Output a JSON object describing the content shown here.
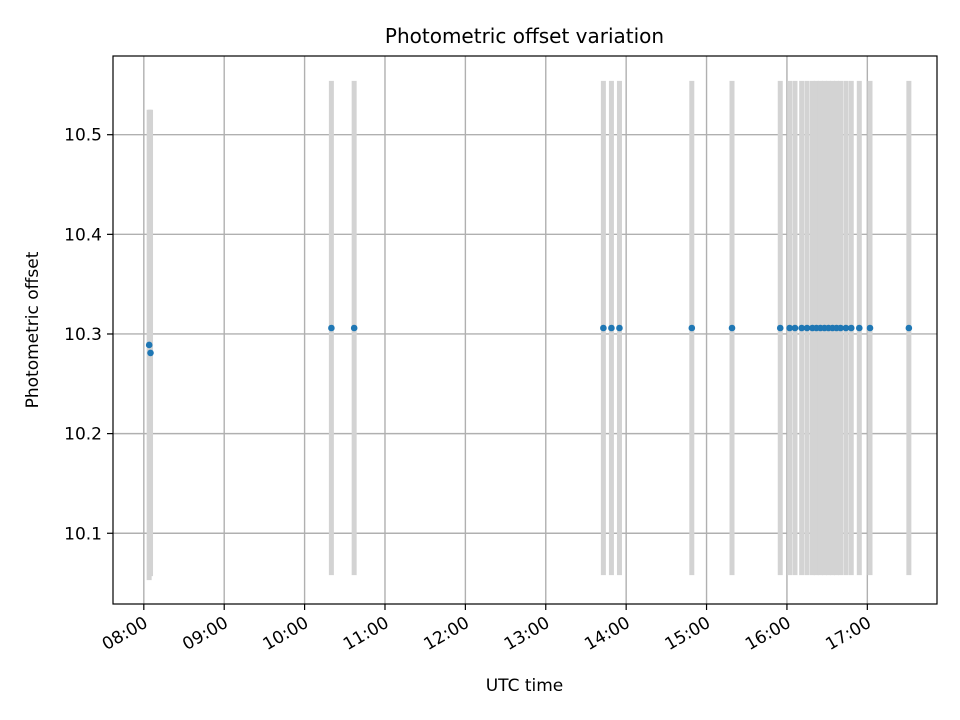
{
  "chart_data": {
    "type": "scatter",
    "title": "Photometric offset variation",
    "xlabel": "UTC time",
    "ylabel": "Photometric offset",
    "x_ticks": [
      "08:00",
      "09:00",
      "10:00",
      "11:00",
      "12:00",
      "13:00",
      "14:00",
      "15:00",
      "16:00",
      "17:00"
    ],
    "y_ticks": [
      "10.1",
      "10.2",
      "10.3",
      "10.4",
      "10.5"
    ],
    "xlim": [
      "07:37",
      "17:52"
    ],
    "ylim": [
      10.029,
      10.579
    ],
    "grid": true,
    "colors": {
      "point": "#1f77b4",
      "errorbar": "#d3d3d3",
      "grid": "#b0b0b0"
    },
    "points": [
      {
        "x": "08:04",
        "y": 10.289,
        "ylow": 10.053,
        "yhigh": 10.525
      },
      {
        "x": "08:05",
        "y": 10.281,
        "ylow": 10.057,
        "yhigh": 10.525
      },
      {
        "x": "10:20",
        "y": 10.306,
        "ylow": 10.058,
        "yhigh": 10.554
      },
      {
        "x": "10:37",
        "y": 10.306,
        "ylow": 10.058,
        "yhigh": 10.554
      },
      {
        "x": "13:43",
        "y": 10.306,
        "ylow": 10.058,
        "yhigh": 10.554
      },
      {
        "x": "13:49",
        "y": 10.306,
        "ylow": 10.058,
        "yhigh": 10.554
      },
      {
        "x": "13:55",
        "y": 10.306,
        "ylow": 10.058,
        "yhigh": 10.554
      },
      {
        "x": "14:49",
        "y": 10.306,
        "ylow": 10.058,
        "yhigh": 10.554
      },
      {
        "x": "15:19",
        "y": 10.306,
        "ylow": 10.058,
        "yhigh": 10.554
      },
      {
        "x": "15:55",
        "y": 10.306,
        "ylow": 10.058,
        "yhigh": 10.554
      },
      {
        "x": "16:02",
        "y": 10.306,
        "ylow": 10.058,
        "yhigh": 10.554
      },
      {
        "x": "16:06",
        "y": 10.306,
        "ylow": 10.058,
        "yhigh": 10.554
      },
      {
        "x": "16:11",
        "y": 10.306,
        "ylow": 10.058,
        "yhigh": 10.554
      },
      {
        "x": "16:15",
        "y": 10.306,
        "ylow": 10.058,
        "yhigh": 10.554
      },
      {
        "x": "16:19",
        "y": 10.306,
        "ylow": 10.058,
        "yhigh": 10.554
      },
      {
        "x": "16:22",
        "y": 10.306,
        "ylow": 10.058,
        "yhigh": 10.554
      },
      {
        "x": "16:25",
        "y": 10.306,
        "ylow": 10.058,
        "yhigh": 10.554
      },
      {
        "x": "16:28",
        "y": 10.306,
        "ylow": 10.058,
        "yhigh": 10.554
      },
      {
        "x": "16:31",
        "y": 10.306,
        "ylow": 10.058,
        "yhigh": 10.554
      },
      {
        "x": "16:34",
        "y": 10.306,
        "ylow": 10.058,
        "yhigh": 10.554
      },
      {
        "x": "16:37",
        "y": 10.306,
        "ylow": 10.058,
        "yhigh": 10.554
      },
      {
        "x": "16:40",
        "y": 10.306,
        "ylow": 10.058,
        "yhigh": 10.554
      },
      {
        "x": "16:44",
        "y": 10.306,
        "ylow": 10.058,
        "yhigh": 10.554
      },
      {
        "x": "16:48",
        "y": 10.306,
        "ylow": 10.058,
        "yhigh": 10.554
      },
      {
        "x": "16:54",
        "y": 10.306,
        "ylow": 10.058,
        "yhigh": 10.554
      },
      {
        "x": "17:02",
        "y": 10.306,
        "ylow": 10.058,
        "yhigh": 10.554
      },
      {
        "x": "17:31",
        "y": 10.306,
        "ylow": 10.058,
        "yhigh": 10.554
      }
    ]
  }
}
